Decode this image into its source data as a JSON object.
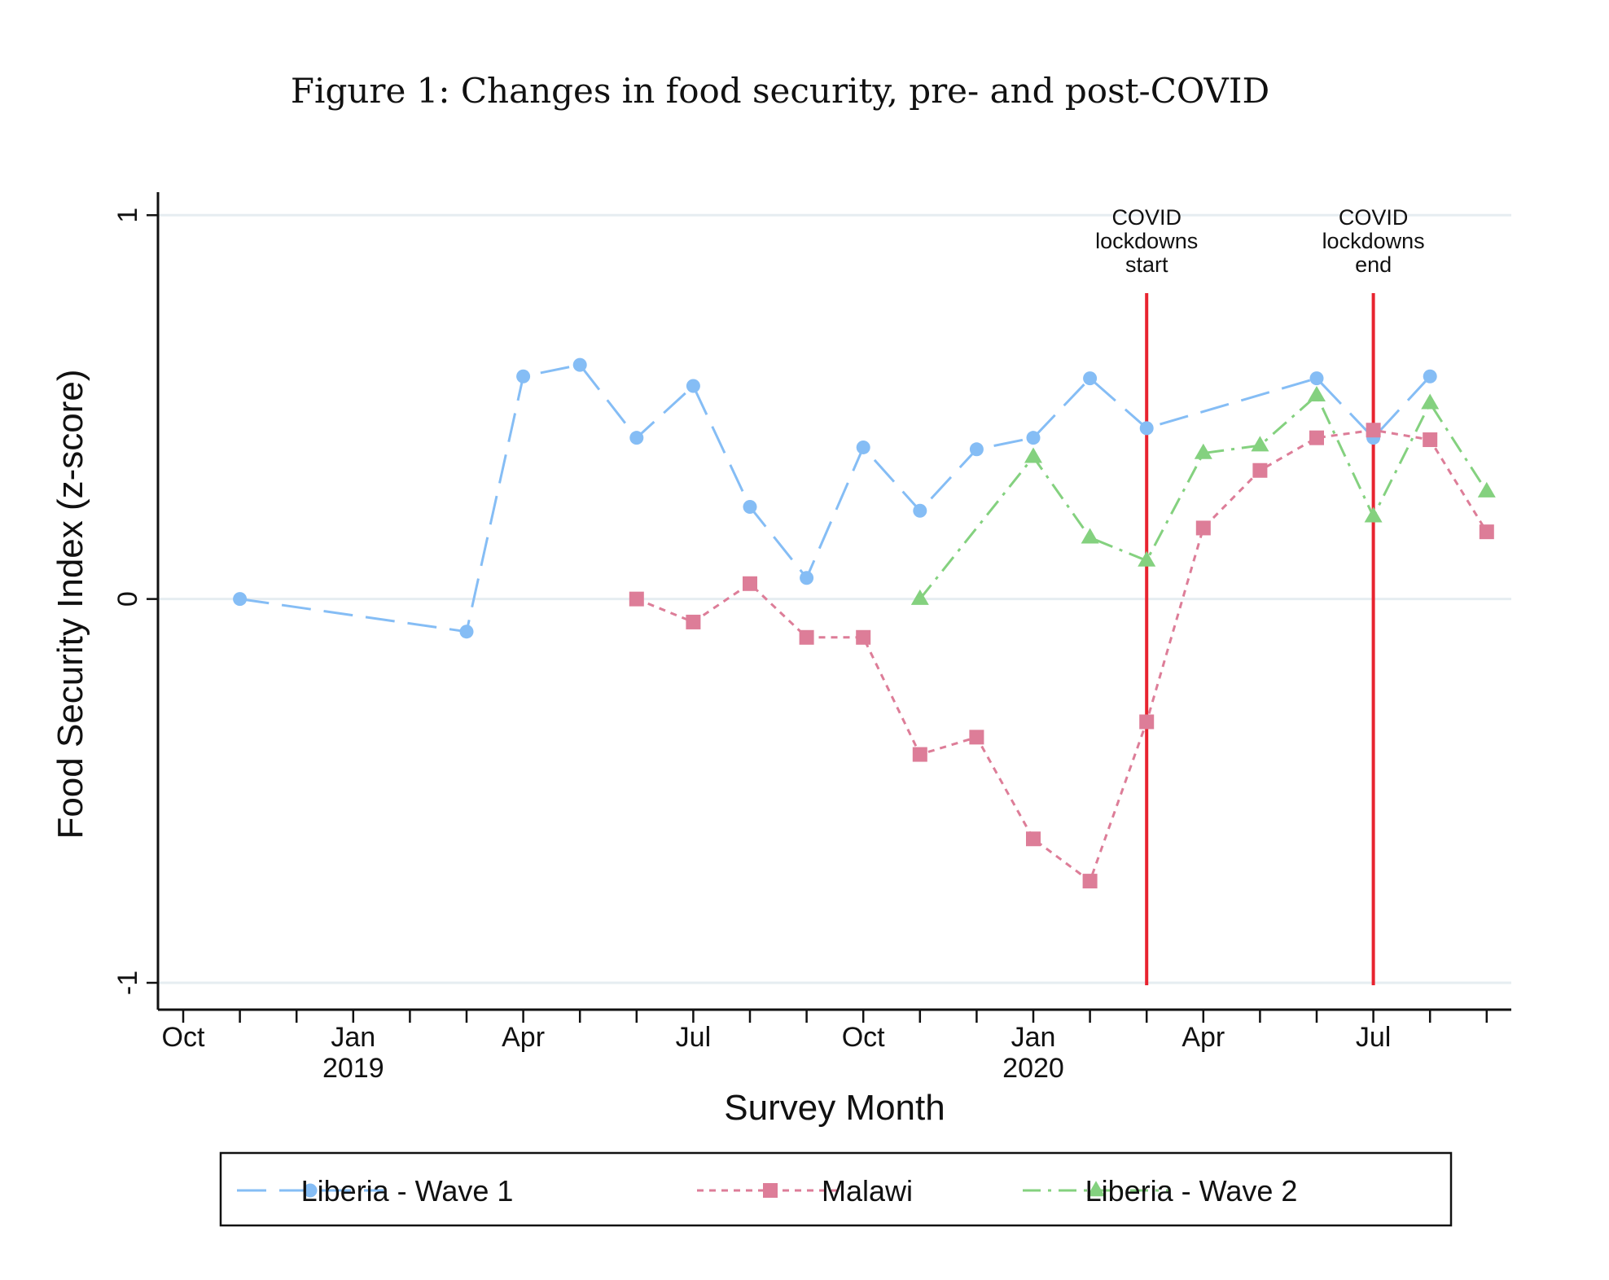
{
  "chart_data": {
    "type": "line",
    "title": "Figure 1: Changes in food security, pre- and post-COVID",
    "xlabel": "Survey Month",
    "ylabel": "Food Security Index (z-score)",
    "ylim": [
      -1.07,
      1.06
    ],
    "yticks": [
      {
        "value": -1,
        "label": "-1"
      },
      {
        "value": 0,
        "label": "0"
      },
      {
        "value": 1,
        "label": "1"
      }
    ],
    "xlim": [
      "2018-09-15",
      "2020-09-15"
    ],
    "xticks": [
      {
        "x": "2018-10",
        "label": "Oct",
        "sublabel": ""
      },
      {
        "x": "2018-11",
        "label": "",
        "sublabel": ""
      },
      {
        "x": "2018-12",
        "label": "",
        "sublabel": ""
      },
      {
        "x": "2019-01",
        "label": "Jan",
        "sublabel": "2019"
      },
      {
        "x": "2019-02",
        "label": "",
        "sublabel": ""
      },
      {
        "x": "2019-03",
        "label": "",
        "sublabel": ""
      },
      {
        "x": "2019-04",
        "label": "Apr",
        "sublabel": ""
      },
      {
        "x": "2019-05",
        "label": "",
        "sublabel": ""
      },
      {
        "x": "2019-06",
        "label": "",
        "sublabel": ""
      },
      {
        "x": "2019-07",
        "label": "Jul",
        "sublabel": ""
      },
      {
        "x": "2019-08",
        "label": "",
        "sublabel": ""
      },
      {
        "x": "2019-09",
        "label": "",
        "sublabel": ""
      },
      {
        "x": "2019-10",
        "label": "Oct",
        "sublabel": ""
      },
      {
        "x": "2019-11",
        "label": "",
        "sublabel": ""
      },
      {
        "x": "2019-12",
        "label": "",
        "sublabel": ""
      },
      {
        "x": "2020-01",
        "label": "Jan",
        "sublabel": "2020"
      },
      {
        "x": "2020-02",
        "label": "",
        "sublabel": ""
      },
      {
        "x": "2020-03",
        "label": "",
        "sublabel": ""
      },
      {
        "x": "2020-04",
        "label": "Apr",
        "sublabel": ""
      },
      {
        "x": "2020-05",
        "label": "",
        "sublabel": ""
      },
      {
        "x": "2020-06",
        "label": "",
        "sublabel": ""
      },
      {
        "x": "2020-07",
        "label": "Jul",
        "sublabel": ""
      },
      {
        "x": "2020-08",
        "label": "",
        "sublabel": ""
      },
      {
        "x": "2020-09",
        "label": "",
        "sublabel": ""
      }
    ],
    "grid": "horizontal",
    "legend": "bottom",
    "series": [
      {
        "name": "Liberia - Wave 1",
        "color": "#85bdf5",
        "line_style": "long-dash",
        "marker": "circle",
        "points": [
          {
            "x": "2018-11",
            "y": 0.0
          },
          {
            "x": "2019-03",
            "y": -0.085
          },
          {
            "x": "2019-04",
            "y": 0.58
          },
          {
            "x": "2019-05",
            "y": 0.61
          },
          {
            "x": "2019-06",
            "y": 0.42
          },
          {
            "x": "2019-07",
            "y": 0.555
          },
          {
            "x": "2019-08",
            "y": 0.24
          },
          {
            "x": "2019-09",
            "y": 0.055
          },
          {
            "x": "2019-10",
            "y": 0.395
          },
          {
            "x": "2019-11",
            "y": 0.23
          },
          {
            "x": "2019-12",
            "y": 0.39
          },
          {
            "x": "2020-01",
            "y": 0.42
          },
          {
            "x": "2020-02",
            "y": 0.575
          },
          {
            "x": "2020-03",
            "y": 0.445
          },
          {
            "x": "2020-06",
            "y": 0.575
          },
          {
            "x": "2020-07",
            "y": 0.42
          },
          {
            "x": "2020-08",
            "y": 0.58
          }
        ]
      },
      {
        "name": "Malawi",
        "color": "#dd7d98",
        "line_style": "short-dash",
        "marker": "square",
        "points": [
          {
            "x": "2019-06",
            "y": 0.0
          },
          {
            "x": "2019-07",
            "y": -0.06
          },
          {
            "x": "2019-08",
            "y": 0.04
          },
          {
            "x": "2019-09",
            "y": -0.1
          },
          {
            "x": "2019-10",
            "y": -0.1
          },
          {
            "x": "2019-11",
            "y": -0.405
          },
          {
            "x": "2019-12",
            "y": -0.36
          },
          {
            "x": "2020-01",
            "y": -0.625
          },
          {
            "x": "2020-02",
            "y": -0.735
          },
          {
            "x": "2020-03",
            "y": -0.32
          },
          {
            "x": "2020-04",
            "y": 0.185
          },
          {
            "x": "2020-05",
            "y": 0.335
          },
          {
            "x": "2020-06",
            "y": 0.42
          },
          {
            "x": "2020-07",
            "y": 0.44
          },
          {
            "x": "2020-08",
            "y": 0.415
          },
          {
            "x": "2020-09",
            "y": 0.175
          }
        ]
      },
      {
        "name": "Liberia - Wave 2",
        "color": "#84d17f",
        "line_style": "dash-dot",
        "marker": "triangle",
        "points": [
          {
            "x": "2019-11",
            "y": 0.0
          },
          {
            "x": "2020-01",
            "y": 0.37
          },
          {
            "x": "2020-02",
            "y": 0.16
          },
          {
            "x": "2020-03",
            "y": 0.1
          },
          {
            "x": "2020-04",
            "y": 0.38
          },
          {
            "x": "2020-05",
            "y": 0.4
          },
          {
            "x": "2020-06",
            "y": 0.53
          },
          {
            "x": "2020-07",
            "y": 0.215
          },
          {
            "x": "2020-08",
            "y": 0.51
          },
          {
            "x": "2020-09",
            "y": 0.28
          }
        ]
      }
    ],
    "annotations": [
      {
        "x": "2020-03",
        "color": "#e8232f",
        "lines": [
          "COVID",
          "lockdowns",
          "start"
        ]
      },
      {
        "x": "2020-07",
        "color": "#e8232f",
        "lines": [
          "COVID",
          "lockdowns",
          "end"
        ]
      }
    ]
  }
}
